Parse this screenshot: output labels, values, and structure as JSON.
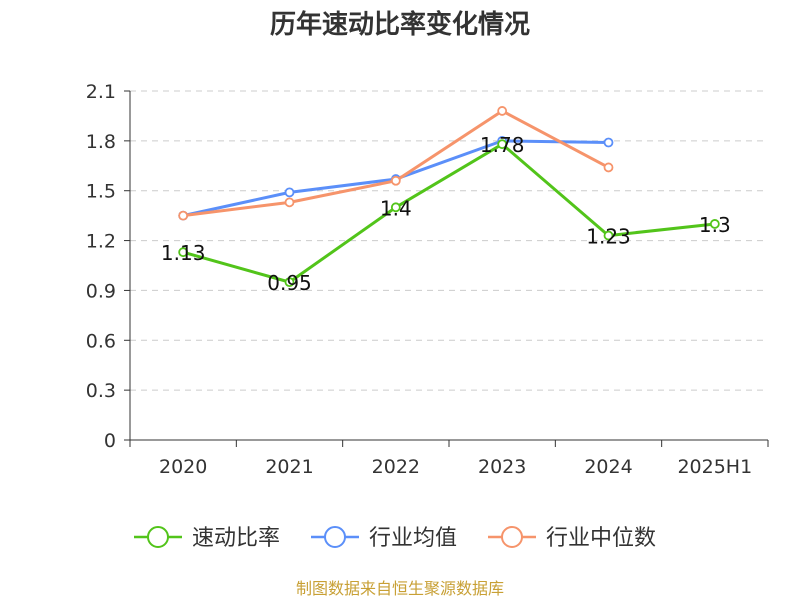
{
  "chart_data": {
    "type": "line",
    "title": "历年速动比率变化情况",
    "categories": [
      "2020",
      "2021",
      "2022",
      "2023",
      "2024",
      "2025H1"
    ],
    "ylim": [
      0,
      2.1
    ],
    "yticks": [
      "0",
      "0.3",
      "0.6",
      "0.9",
      "1.2",
      "1.5",
      "1.8",
      "2.1"
    ],
    "grid": true,
    "legend_position": "bottom",
    "series": [
      {
        "name": "速动比率",
        "color": "#52c41a",
        "values": [
          1.13,
          0.95,
          1.4,
          1.78,
          1.23,
          1.3
        ],
        "labels": [
          "1.13",
          "0.95",
          "1.4",
          "1.78",
          "1.23",
          "1.3"
        ]
      },
      {
        "name": "行业均值",
        "color": "#5b8ff9",
        "values": [
          1.35,
          1.49,
          1.57,
          1.8,
          1.79,
          null
        ]
      },
      {
        "name": "行业中位数",
        "color": "#f6946b",
        "values": [
          1.35,
          1.43,
          1.56,
          1.98,
          1.64,
          null
        ]
      }
    ]
  },
  "source": {
    "text": "制图数据来自恒生聚源数据库",
    "color": "#c8a035"
  }
}
